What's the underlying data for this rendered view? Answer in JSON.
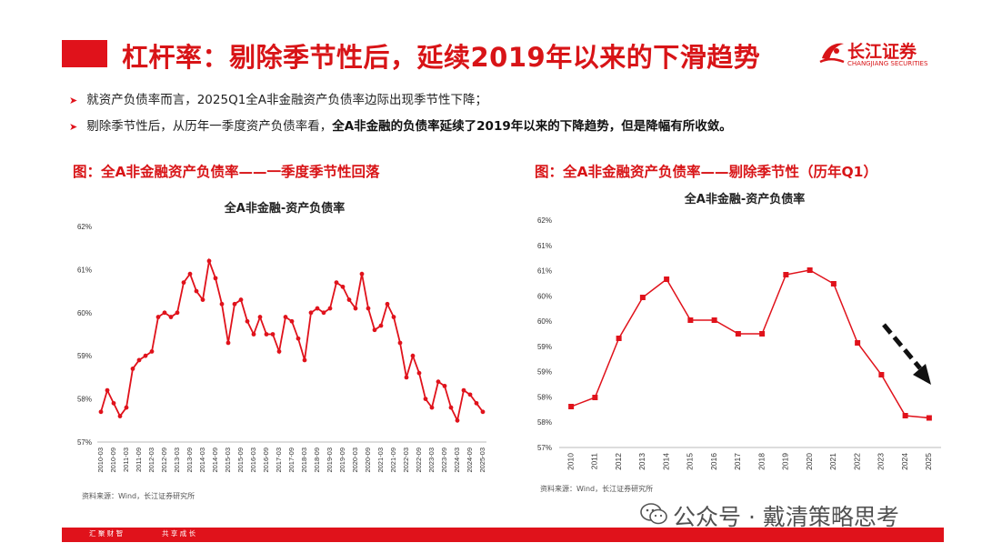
{
  "header": {
    "title": "杠杆率：剔除季节性后，延续2019年以来的下滑趋势",
    "logo_cn": "长江证券",
    "logo_en": "CHANGJIANG SECURITIES"
  },
  "bullets": [
    {
      "text": "就资产负债率而言，2025Q1全A非金融资产负债率边际出现季节性下降；",
      "bold": ""
    },
    {
      "text": "剔除季节性后，从历年一季度资产负债率看，",
      "bold": "全A非金融的负债率延续了2019年以来的下降趋势，但是降幅有所收敛。"
    }
  ],
  "left": {
    "caption": "图：全A非金融资产负债率——一季度季节性回落",
    "source": "资料来源：Wind，长江证券研究所"
  },
  "right": {
    "caption": "图：全A非金融资产负债率——剔除季节性（历年Q1）",
    "source": "资料来源：Wind，长江证券研究所"
  },
  "watermark": "公众号 · 戴清策略思考",
  "footer": {
    "left": "汇 聚 财 智",
    "right": "共 享 成 长"
  },
  "colors": {
    "accent": "#e0121b",
    "line": "#e0121b",
    "arrow": "#111111"
  },
  "chart_data": [
    {
      "type": "line",
      "title": "全A非金融-资产负债率",
      "ylim": [
        57,
        62
      ],
      "yticks": [
        "57%",
        "58%",
        "59%",
        "60%",
        "61%",
        "62%"
      ],
      "categories": [
        "2010-03",
        "2010-06",
        "2010-09",
        "2010-12",
        "2011-03",
        "2011-06",
        "2011-09",
        "2011-12",
        "2012-03",
        "2012-06",
        "2012-09",
        "2012-12",
        "2013-03",
        "2013-06",
        "2013-09",
        "2013-12",
        "2014-03",
        "2014-06",
        "2014-09",
        "2014-12",
        "2015-03",
        "2015-06",
        "2015-09",
        "2015-12",
        "2016-03",
        "2016-06",
        "2016-09",
        "2016-12",
        "2017-03",
        "2017-06",
        "2017-09",
        "2017-12",
        "2018-03",
        "2018-06",
        "2018-09",
        "2018-12",
        "2019-03",
        "2019-06",
        "2019-09",
        "2019-12",
        "2020-03",
        "2020-06",
        "2020-09",
        "2020-12",
        "2021-03",
        "2021-06",
        "2021-09",
        "2021-12",
        "2022-03",
        "2022-06",
        "2022-09",
        "2022-12",
        "2023-03",
        "2023-06",
        "2023-09",
        "2023-12",
        "2024-03",
        "2024-06",
        "2024-09",
        "2024-12",
        "2025-03"
      ],
      "xticks": [
        "2010-03",
        "2010-09",
        "2011-03",
        "2011-09",
        "2012-03",
        "2012-09",
        "2013-03",
        "2013-09",
        "2014-03",
        "2014-09",
        "2015-03",
        "2015-09",
        "2016-03",
        "2016-09",
        "2017-03",
        "2017-09",
        "2018-03",
        "2018-09",
        "2019-03",
        "2019-09",
        "2020-03",
        "2020-09",
        "2021-03",
        "2021-09",
        "2022-03",
        "2022-09",
        "2023-03",
        "2023-09",
        "2024-03",
        "2024-09",
        "2025-03"
      ],
      "series": [
        {
          "values": [
            57.7,
            58.2,
            57.9,
            57.6,
            57.8,
            58.7,
            58.9,
            59.0,
            59.1,
            59.9,
            60.0,
            59.9,
            60.0,
            60.7,
            60.9,
            60.5,
            60.3,
            61.2,
            60.8,
            60.2,
            59.3,
            60.2,
            60.3,
            59.8,
            59.5,
            59.9,
            59.5,
            59.5,
            59.1,
            59.9,
            59.8,
            59.4,
            58.9,
            60.0,
            60.1,
            60.0,
            60.1,
            60.7,
            60.6,
            60.3,
            60.1,
            60.9,
            60.1,
            59.6,
            59.7,
            60.2,
            59.9,
            59.3,
            58.5,
            59.0,
            58.6,
            58.0,
            57.8,
            58.4,
            58.3,
            57.8,
            57.5,
            58.2,
            58.1,
            57.9,
            57.7
          ]
        }
      ]
    },
    {
      "type": "line",
      "title": "全A非金融-资产负债率",
      "ylim": [
        57,
        62
      ],
      "yticks": [
        "57%",
        "58%",
        "58%",
        "59%",
        "59%",
        "60%",
        "60%",
        "61%",
        "61%",
        "62%"
      ],
      "categories": [
        "2010",
        "2011",
        "2012",
        "2013",
        "2014",
        "2015",
        "2016",
        "2017",
        "2018",
        "2019",
        "2020",
        "2021",
        "2022",
        "2023",
        "2024",
        "2025"
      ],
      "series": [
        {
          "values": [
            57.9,
            58.1,
            59.4,
            60.3,
            60.7,
            59.8,
            59.8,
            59.5,
            59.5,
            60.8,
            60.9,
            60.6,
            59.3,
            58.6,
            57.7,
            57.65
          ]
        }
      ]
    }
  ]
}
